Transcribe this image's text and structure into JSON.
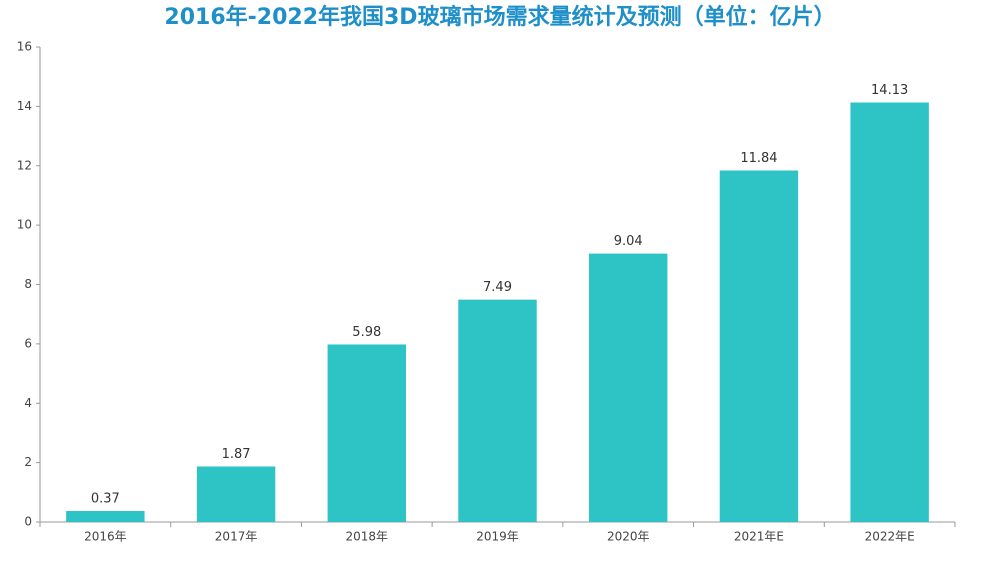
{
  "chart_data": {
    "type": "bar",
    "title": "2016年-2022年我国3D玻璃市场需求量统计及预测（单位：亿片）",
    "categories": [
      "2016年",
      "2017年",
      "2018年",
      "2019年",
      "2020年",
      "2021年E",
      "2022年E"
    ],
    "values": [
      0.37,
      1.87,
      5.98,
      7.49,
      9.04,
      11.84,
      14.13
    ],
    "color": "#2ec4c6",
    "ylim": [
      0,
      16
    ],
    "yticks": [
      0,
      2,
      4,
      6,
      8,
      10,
      12,
      14,
      16
    ],
    "grid": false
  }
}
